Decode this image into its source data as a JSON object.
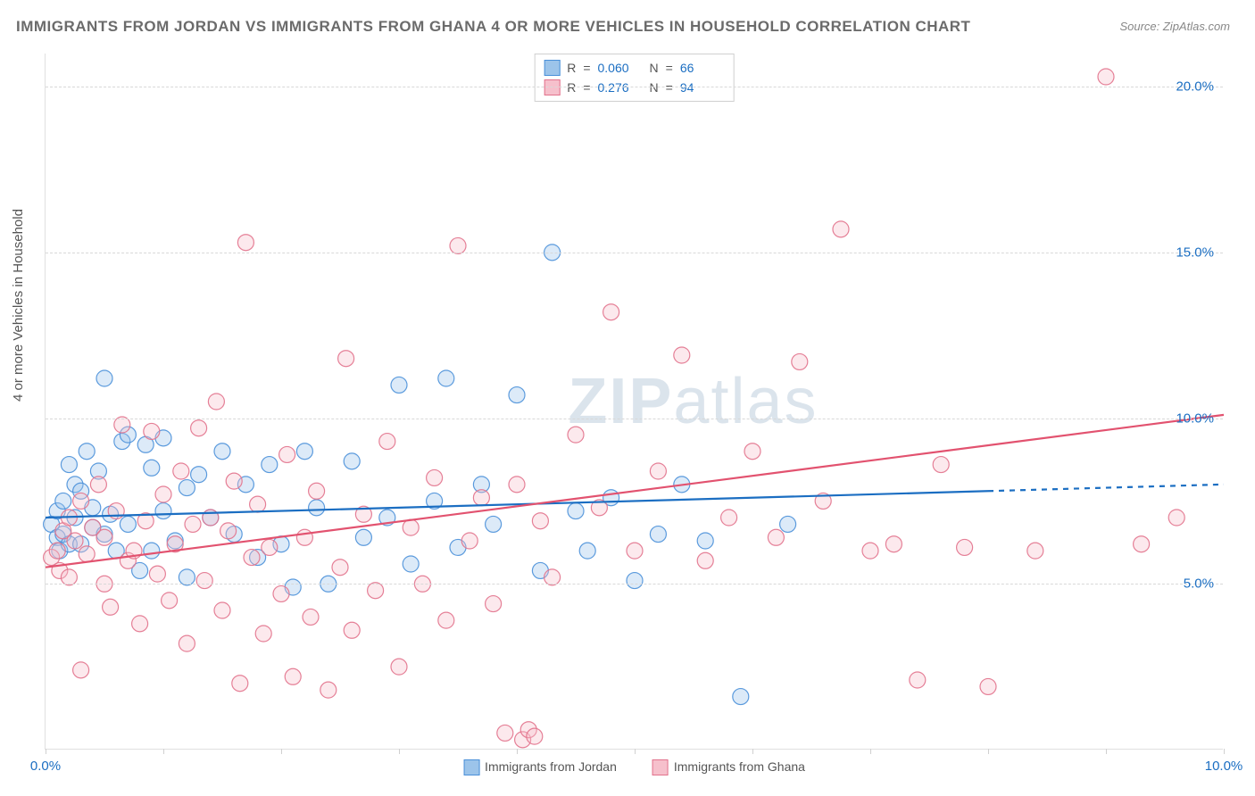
{
  "title": "IMMIGRANTS FROM JORDAN VS IMMIGRANTS FROM GHANA 4 OR MORE VEHICLES IN HOUSEHOLD CORRELATION CHART",
  "source": "Source: ZipAtlas.com",
  "watermark_zip": "ZIP",
  "watermark_atlas": "atlas",
  "y_axis_label": "4 or more Vehicles in Household",
  "chart": {
    "type": "scatter",
    "background_color": "#ffffff",
    "grid_color": "#d8d8d8",
    "border_color": "#e0e0e0",
    "xlim": [
      0,
      10
    ],
    "ylim": [
      0,
      21
    ],
    "x_ticks": [
      0,
      1,
      2,
      3,
      4,
      5,
      6,
      7,
      8,
      9,
      10
    ],
    "x_tick_labels": {
      "0": "0.0%",
      "10": "10.0%"
    },
    "y_ticks": [
      5,
      10,
      15,
      20
    ],
    "y_tick_labels": {
      "5": "5.0%",
      "10": "10.0%",
      "15": "15.0%",
      "20": "20.0%"
    },
    "marker_radius": 9,
    "marker_opacity": 0.35,
    "marker_stroke_opacity": 0.9,
    "line_width": 2.2,
    "series": [
      {
        "id": "jordan",
        "label": "Immigrants from Jordan",
        "fill_color": "#9cc4ea",
        "stroke_color": "#4a90d9",
        "line_color": "#1b6ec2",
        "r_value": "0.060",
        "n_value": "66",
        "trend_start": [
          0,
          7.0
        ],
        "trend_end_solid": [
          8.0,
          7.8
        ],
        "trend_end_dashed": [
          10.0,
          8.0
        ],
        "points": [
          [
            0.05,
            6.8
          ],
          [
            0.1,
            6.4
          ],
          [
            0.1,
            7.2
          ],
          [
            0.12,
            6.0
          ],
          [
            0.15,
            7.5
          ],
          [
            0.15,
            6.5
          ],
          [
            0.2,
            8.6
          ],
          [
            0.2,
            6.2
          ],
          [
            0.25,
            7.0
          ],
          [
            0.25,
            8.0
          ],
          [
            0.3,
            7.8
          ],
          [
            0.3,
            6.2
          ],
          [
            0.35,
            9.0
          ],
          [
            0.4,
            6.7
          ],
          [
            0.4,
            7.3
          ],
          [
            0.45,
            8.4
          ],
          [
            0.5,
            11.2
          ],
          [
            0.5,
            6.5
          ],
          [
            0.55,
            7.1
          ],
          [
            0.6,
            6.0
          ],
          [
            0.65,
            9.3
          ],
          [
            0.7,
            9.5
          ],
          [
            0.7,
            6.8
          ],
          [
            0.8,
            5.4
          ],
          [
            0.85,
            9.2
          ],
          [
            0.9,
            6.0
          ],
          [
            0.9,
            8.5
          ],
          [
            1.0,
            7.2
          ],
          [
            1.0,
            9.4
          ],
          [
            1.1,
            6.3
          ],
          [
            1.2,
            7.9
          ],
          [
            1.2,
            5.2
          ],
          [
            1.3,
            8.3
          ],
          [
            1.4,
            7.0
          ],
          [
            1.5,
            9.0
          ],
          [
            1.6,
            6.5
          ],
          [
            1.7,
            8.0
          ],
          [
            1.8,
            5.8
          ],
          [
            1.9,
            8.6
          ],
          [
            2.0,
            6.2
          ],
          [
            2.1,
            4.9
          ],
          [
            2.2,
            9.0
          ],
          [
            2.3,
            7.3
          ],
          [
            2.4,
            5.0
          ],
          [
            2.6,
            8.7
          ],
          [
            2.7,
            6.4
          ],
          [
            2.9,
            7.0
          ],
          [
            3.0,
            11.0
          ],
          [
            3.1,
            5.6
          ],
          [
            3.3,
            7.5
          ],
          [
            3.4,
            11.2
          ],
          [
            3.5,
            6.1
          ],
          [
            3.7,
            8.0
          ],
          [
            3.8,
            6.8
          ],
          [
            4.0,
            10.7
          ],
          [
            4.2,
            5.4
          ],
          [
            4.3,
            15.0
          ],
          [
            4.5,
            7.2
          ],
          [
            4.6,
            6.0
          ],
          [
            4.8,
            7.6
          ],
          [
            5.0,
            5.1
          ],
          [
            5.2,
            6.5
          ],
          [
            5.4,
            8.0
          ],
          [
            5.6,
            6.3
          ],
          [
            5.9,
            1.6
          ],
          [
            6.3,
            6.8
          ]
        ]
      },
      {
        "id": "ghana",
        "label": "Immigrants from Ghana",
        "fill_color": "#f6c0cc",
        "stroke_color": "#e2728c",
        "line_color": "#e2526f",
        "r_value": "0.276",
        "n_value": "94",
        "trend_start": [
          0,
          5.5
        ],
        "trend_end_solid": [
          10.0,
          10.1
        ],
        "trend_end_dashed": null,
        "points": [
          [
            0.05,
            5.8
          ],
          [
            0.1,
            6.0
          ],
          [
            0.12,
            5.4
          ],
          [
            0.15,
            6.6
          ],
          [
            0.2,
            7.0
          ],
          [
            0.2,
            5.2
          ],
          [
            0.25,
            6.3
          ],
          [
            0.3,
            7.5
          ],
          [
            0.3,
            2.4
          ],
          [
            0.35,
            5.9
          ],
          [
            0.4,
            6.7
          ],
          [
            0.45,
            8.0
          ],
          [
            0.5,
            5.0
          ],
          [
            0.5,
            6.4
          ],
          [
            0.55,
            4.3
          ],
          [
            0.6,
            7.2
          ],
          [
            0.65,
            9.8
          ],
          [
            0.7,
            5.7
          ],
          [
            0.75,
            6.0
          ],
          [
            0.8,
            3.8
          ],
          [
            0.85,
            6.9
          ],
          [
            0.9,
            9.6
          ],
          [
            0.95,
            5.3
          ],
          [
            1.0,
            7.7
          ],
          [
            1.05,
            4.5
          ],
          [
            1.1,
            6.2
          ],
          [
            1.15,
            8.4
          ],
          [
            1.2,
            3.2
          ],
          [
            1.25,
            6.8
          ],
          [
            1.3,
            9.7
          ],
          [
            1.35,
            5.1
          ],
          [
            1.4,
            7.0
          ],
          [
            1.45,
            10.5
          ],
          [
            1.5,
            4.2
          ],
          [
            1.55,
            6.6
          ],
          [
            1.6,
            8.1
          ],
          [
            1.65,
            2.0
          ],
          [
            1.7,
            15.3
          ],
          [
            1.75,
            5.8
          ],
          [
            1.8,
            7.4
          ],
          [
            1.85,
            3.5
          ],
          [
            1.9,
            6.1
          ],
          [
            2.0,
            4.7
          ],
          [
            2.05,
            8.9
          ],
          [
            2.1,
            2.2
          ],
          [
            2.2,
            6.4
          ],
          [
            2.25,
            4.0
          ],
          [
            2.3,
            7.8
          ],
          [
            2.4,
            1.8
          ],
          [
            2.5,
            5.5
          ],
          [
            2.55,
            11.8
          ],
          [
            2.6,
            3.6
          ],
          [
            2.7,
            7.1
          ],
          [
            2.8,
            4.8
          ],
          [
            2.9,
            9.3
          ],
          [
            3.0,
            2.5
          ],
          [
            3.1,
            6.7
          ],
          [
            3.2,
            5.0
          ],
          [
            3.3,
            8.2
          ],
          [
            3.4,
            3.9
          ],
          [
            3.5,
            15.2
          ],
          [
            3.6,
            6.3
          ],
          [
            3.7,
            7.6
          ],
          [
            3.8,
            4.4
          ],
          [
            3.9,
            0.5
          ],
          [
            4.0,
            8.0
          ],
          [
            4.05,
            0.3
          ],
          [
            4.1,
            0.6
          ],
          [
            4.15,
            0.4
          ],
          [
            4.2,
            6.9
          ],
          [
            4.3,
            5.2
          ],
          [
            4.5,
            9.5
          ],
          [
            4.7,
            7.3
          ],
          [
            4.8,
            13.2
          ],
          [
            5.0,
            6.0
          ],
          [
            5.2,
            8.4
          ],
          [
            5.4,
            11.9
          ],
          [
            5.6,
            5.7
          ],
          [
            5.8,
            7.0
          ],
          [
            6.0,
            9.0
          ],
          [
            6.2,
            6.4
          ],
          [
            6.4,
            11.7
          ],
          [
            6.6,
            7.5
          ],
          [
            6.75,
            15.7
          ],
          [
            7.0,
            6.0
          ],
          [
            7.2,
            6.2
          ],
          [
            7.4,
            2.1
          ],
          [
            7.6,
            8.6
          ],
          [
            7.8,
            6.1
          ],
          [
            8.0,
            1.9
          ],
          [
            8.4,
            6.0
          ],
          [
            9.0,
            20.3
          ],
          [
            9.3,
            6.2
          ],
          [
            9.6,
            7.0
          ]
        ]
      }
    ]
  },
  "legend_top_headers": {
    "r": "R",
    "eq": "=",
    "n": "N"
  },
  "axis_tick_color": "#1b6ec2"
}
